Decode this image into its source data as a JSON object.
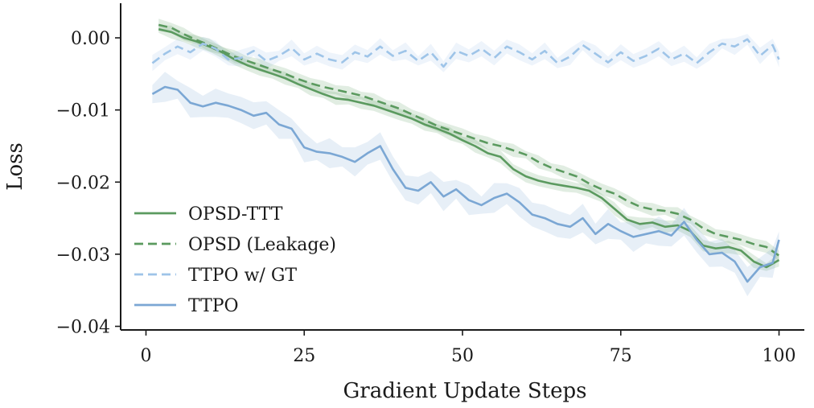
{
  "chart_data": {
    "type": "line",
    "xlabel": "Gradient Update Steps",
    "ylabel": "Loss",
    "xlim": [
      -4,
      104
    ],
    "ylim": [
      -0.0405,
      0.0048
    ],
    "xticks": [
      0,
      25,
      50,
      75,
      100
    ],
    "xtick_labels": [
      "0",
      "25",
      "50",
      "75",
      "100"
    ],
    "yticks": [
      0.0,
      -0.01,
      -0.02,
      -0.03,
      -0.04
    ],
    "ytick_labels": [
      "0.00",
      "−0.01",
      "−0.02",
      "−0.03",
      "−0.04"
    ],
    "grid": false,
    "legend_position": "lower-left",
    "series": [
      {
        "name": "OPSD-TTT",
        "color": "#5b9a5f",
        "dash": "solid",
        "x": [
          2,
          4,
          6,
          8,
          10,
          12,
          14,
          16,
          18,
          20,
          22,
          24,
          26,
          28,
          30,
          32,
          34,
          36,
          38,
          40,
          42,
          44,
          46,
          48,
          50,
          52,
          54,
          56,
          58,
          60,
          62,
          64,
          66,
          68,
          70,
          72,
          74,
          76,
          78,
          80,
          82,
          84,
          86,
          88,
          90,
          92,
          94,
          96,
          98,
          100
        ],
        "y": [
          0.0012,
          0.0008,
          0.0,
          -0.0005,
          -0.0012,
          -0.002,
          -0.003,
          -0.0038,
          -0.0044,
          -0.005,
          -0.0056,
          -0.0064,
          -0.0071,
          -0.0078,
          -0.0084,
          -0.0086,
          -0.009,
          -0.0094,
          -0.01,
          -0.0106,
          -0.0112,
          -0.012,
          -0.0126,
          -0.0133,
          -0.0142,
          -0.015,
          -0.016,
          -0.0165,
          -0.0182,
          -0.0192,
          -0.0198,
          -0.0202,
          -0.0205,
          -0.0208,
          -0.0212,
          -0.0222,
          -0.0237,
          -0.0252,
          -0.0258,
          -0.0256,
          -0.0262,
          -0.026,
          -0.0268,
          -0.0288,
          -0.0292,
          -0.029,
          -0.0295,
          -0.031,
          -0.0318,
          -0.0308
        ]
      },
      {
        "name": "OPSD (Leakage)",
        "color": "#5b9a5f",
        "dash": "dashed",
        "x": [
          2,
          4,
          6,
          8,
          10,
          12,
          14,
          16,
          18,
          20,
          22,
          24,
          26,
          28,
          30,
          32,
          34,
          36,
          38,
          40,
          42,
          44,
          46,
          48,
          50,
          52,
          54,
          56,
          58,
          60,
          62,
          64,
          66,
          68,
          70,
          72,
          74,
          76,
          78,
          80,
          82,
          84,
          86,
          88,
          90,
          92,
          94,
          96,
          98,
          100
        ],
        "y": [
          0.0018,
          0.0014,
          0.0005,
          -0.0003,
          -0.001,
          -0.0018,
          -0.0026,
          -0.0032,
          -0.0038,
          -0.0044,
          -0.005,
          -0.0057,
          -0.0063,
          -0.0068,
          -0.0072,
          -0.0076,
          -0.008,
          -0.0086,
          -0.0092,
          -0.0098,
          -0.0106,
          -0.0114,
          -0.0122,
          -0.0128,
          -0.0134,
          -0.014,
          -0.0146,
          -0.015,
          -0.0156,
          -0.0162,
          -0.0172,
          -0.018,
          -0.0186,
          -0.0192,
          -0.0202,
          -0.021,
          -0.0216,
          -0.0226,
          -0.0234,
          -0.0238,
          -0.024,
          -0.0244,
          -0.0252,
          -0.0264,
          -0.0272,
          -0.0276,
          -0.028,
          -0.0286,
          -0.029,
          -0.0302
        ]
      },
      {
        "name": "TTPO w/ GT",
        "color": "#9ec4e8",
        "dash": "dashed",
        "x": [
          1,
          3,
          5,
          7,
          9,
          11,
          13,
          15,
          17,
          19,
          21,
          23,
          25,
          27,
          29,
          31,
          33,
          35,
          37,
          39,
          41,
          43,
          45,
          47,
          49,
          51,
          53,
          55,
          57,
          59,
          61,
          63,
          65,
          67,
          69,
          71,
          73,
          75,
          77,
          79,
          81,
          83,
          85,
          87,
          89,
          91,
          93,
          95,
          97,
          99,
          100
        ],
        "y": [
          -0.0035,
          -0.0022,
          -0.0012,
          -0.002,
          -0.0008,
          -0.0015,
          -0.003,
          -0.0028,
          -0.0018,
          -0.0032,
          -0.0025,
          -0.0014,
          -0.003,
          -0.0022,
          -0.003,
          -0.0034,
          -0.002,
          -0.0026,
          -0.0012,
          -0.0025,
          -0.0018,
          -0.0032,
          -0.002,
          -0.004,
          -0.0018,
          -0.0025,
          -0.0015,
          -0.0028,
          -0.0012,
          -0.002,
          -0.003,
          -0.0018,
          -0.0035,
          -0.0026,
          -0.001,
          -0.0022,
          -0.0034,
          -0.002,
          -0.0032,
          -0.0025,
          -0.0015,
          -0.003,
          -0.0022,
          -0.0035,
          -0.002,
          -0.0008,
          -0.0012,
          -0.0002,
          -0.0025,
          -0.001,
          -0.003
        ]
      },
      {
        "name": "TTPO",
        "color": "#7ba7d4",
        "dash": "solid",
        "x": [
          1,
          3,
          5,
          7,
          9,
          11,
          13,
          15,
          17,
          19,
          21,
          23,
          25,
          27,
          29,
          31,
          33,
          35,
          37,
          39,
          41,
          43,
          45,
          47,
          49,
          51,
          53,
          55,
          57,
          59,
          61,
          63,
          65,
          67,
          69,
          71,
          73,
          75,
          77,
          79,
          81,
          83,
          85,
          87,
          89,
          91,
          93,
          95,
          97,
          99,
          100
        ],
        "y": [
          -0.0078,
          -0.0068,
          -0.0072,
          -0.009,
          -0.0095,
          -0.009,
          -0.0094,
          -0.01,
          -0.0108,
          -0.0104,
          -0.012,
          -0.0126,
          -0.0152,
          -0.0158,
          -0.016,
          -0.0165,
          -0.0172,
          -0.016,
          -0.015,
          -0.0182,
          -0.0208,
          -0.0212,
          -0.02,
          -0.022,
          -0.021,
          -0.0225,
          -0.0232,
          -0.0222,
          -0.0216,
          -0.0228,
          -0.0245,
          -0.025,
          -0.0258,
          -0.0262,
          -0.025,
          -0.0272,
          -0.0258,
          -0.0268,
          -0.0276,
          -0.0272,
          -0.0268,
          -0.0274,
          -0.0255,
          -0.028,
          -0.03,
          -0.0298,
          -0.031,
          -0.0338,
          -0.0318,
          -0.0312,
          -0.028
        ]
      }
    ]
  }
}
